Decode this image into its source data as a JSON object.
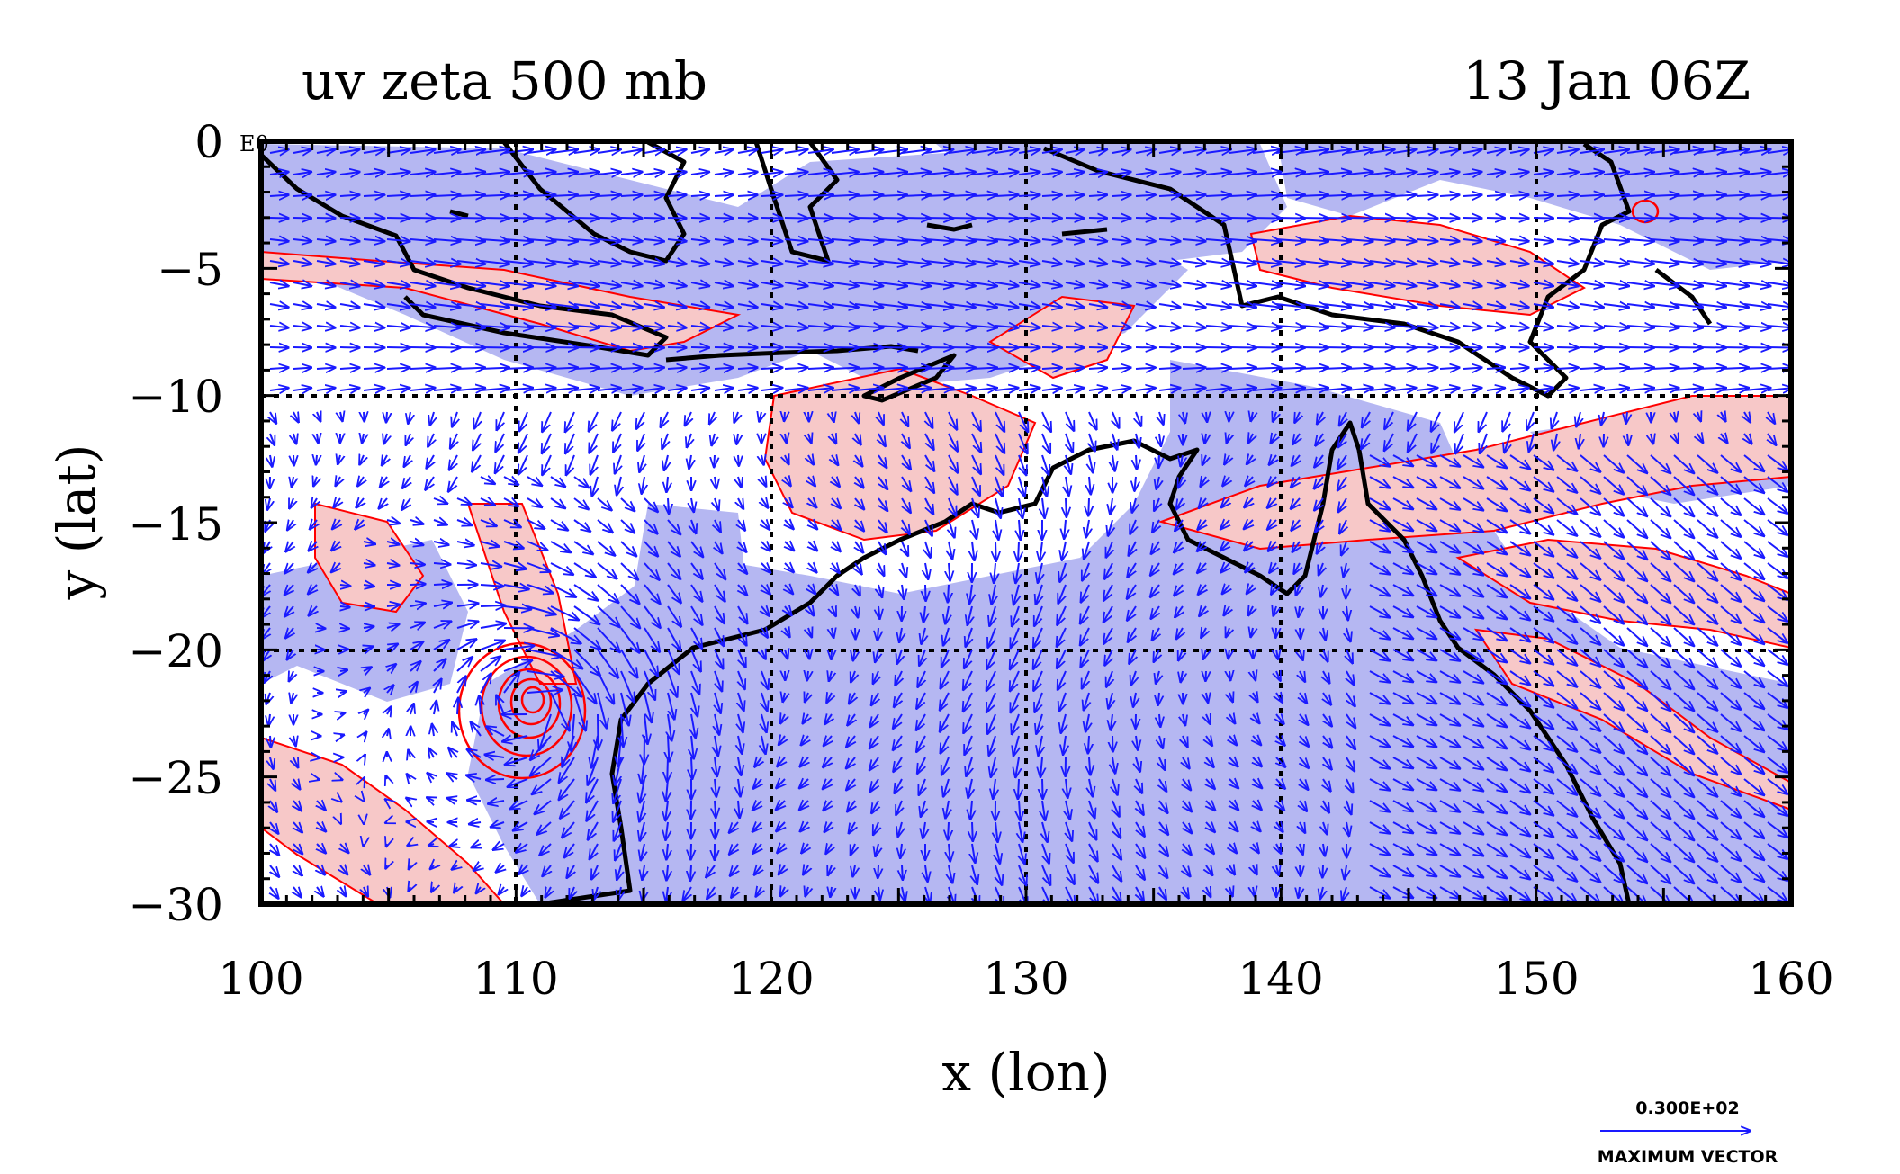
{
  "plot": {
    "title_left": "uv zeta 500 mb",
    "title_right": "13 Jan 06Z",
    "corner_label": "E0",
    "xlabel": "x (lon)",
    "ylabel": "y (lat)",
    "x_ticks": [
      "100",
      "110",
      "120",
      "130",
      "140",
      "150",
      "160"
    ],
    "y_ticks": [
      "0",
      "−5",
      "−10",
      "−15",
      "−20",
      "−25",
      "−30"
    ],
    "xlim": [
      100,
      160
    ],
    "ylim": [
      -30,
      0
    ],
    "grid_lines_lon": [
      110,
      120,
      130,
      140,
      150
    ],
    "grid_lines_lat": [
      -10,
      -20
    ],
    "legend": {
      "vector_value": "0.300E+02",
      "vector_label": "MAXIMUM VECTOR"
    },
    "colors": {
      "positive_vorticity_fill": "#f7c8c8",
      "positive_vorticity_contour": "#ff0000",
      "negative_vorticity_fill": "#b5b7f2",
      "wind_vectors": "#1a1aff",
      "coastline": "#000000",
      "grid": "#000000"
    }
  }
}
